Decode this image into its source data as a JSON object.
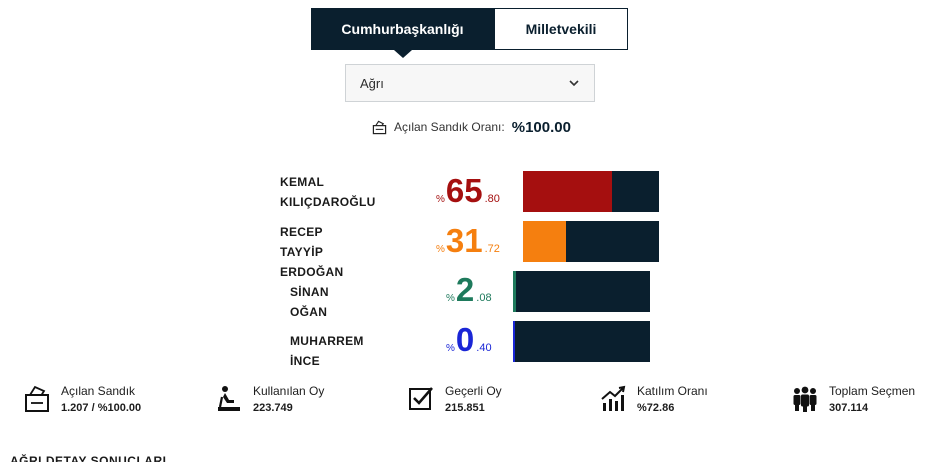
{
  "tabs": {
    "active": "Cumhurbaşkanlığı",
    "inactive": "Milletvekili"
  },
  "province_select": {
    "value": "Ağrı"
  },
  "opened_ballot": {
    "label": "Açılan Sandık Oranı:",
    "value": "%100.00"
  },
  "candidates": [
    {
      "name": "KEMAL\nKILIÇDAROĞLU",
      "sign": "%",
      "int": "65",
      "dec": ".80",
      "share": 0.658,
      "color": "#a50f0f"
    },
    {
      "name": "RECEP TAYYİP\nERDOĞAN",
      "sign": "%",
      "int": "31",
      "dec": ".72",
      "share": 0.3172,
      "color": "#f57f0f"
    },
    {
      "name": "SİNAN OĞAN",
      "sign": "%",
      "int": "2",
      "dec": ".08",
      "share": 0.0208,
      "color": "#1e7a5c"
    },
    {
      "name": "MUHARREM İNCE",
      "sign": "%",
      "int": "0",
      "dec": ".40",
      "share": 0.004,
      "color": "#1a26d6"
    }
  ],
  "stats": [
    {
      "icon": "ballot-box-icon",
      "label": "Açılan Sandık",
      "value": "1.207 / %100.00"
    },
    {
      "icon": "voter-icon",
      "label": "Kullanılan Oy",
      "value": "223.749"
    },
    {
      "icon": "checkbox-icon",
      "label": "Geçerli Oy",
      "value": "215.851"
    },
    {
      "icon": "chart-up-icon",
      "label": "Katılım Oranı",
      "value": "%72.86"
    },
    {
      "icon": "people-icon",
      "label": "Toplam Seçmen",
      "value": "307.114"
    }
  ],
  "footer_cut": "AĞRI DETAY SONUÇLARI"
}
